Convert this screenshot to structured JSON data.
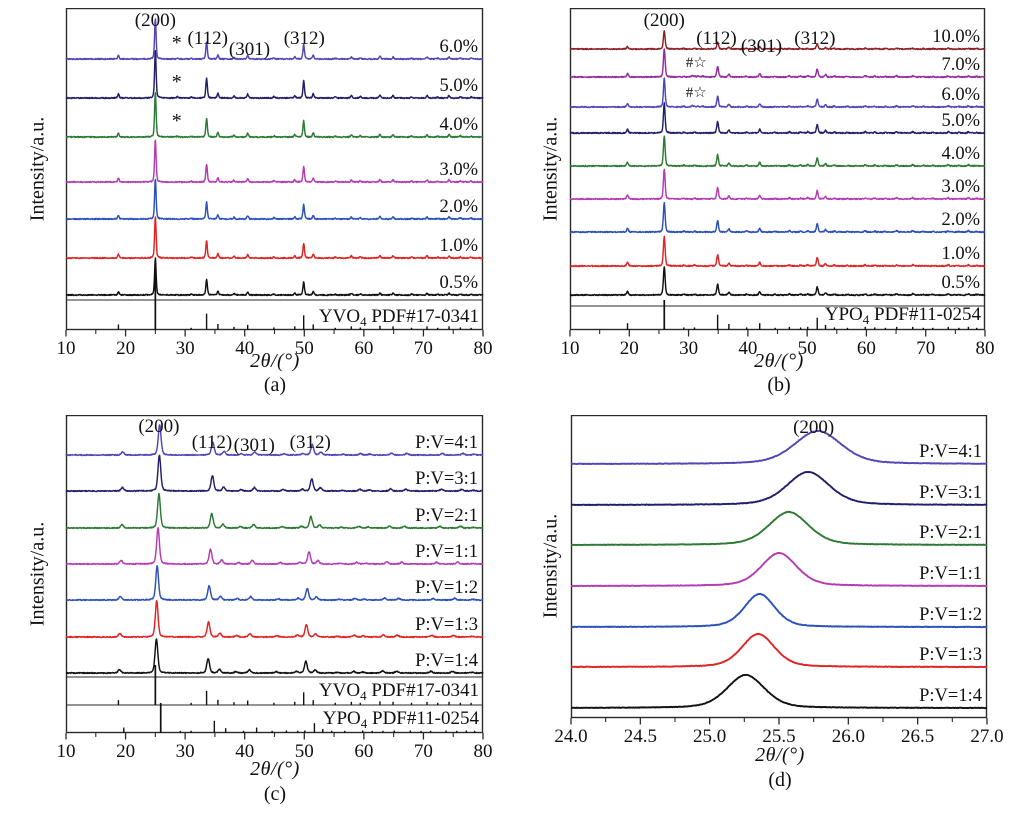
{
  "figure": {
    "background": "#ffffff",
    "ylabel": "Intensity/a.u.",
    "xlabel": "2θ/(°)"
  },
  "palette": {
    "violet": "#4f46b8",
    "navy": "#1f1f6b",
    "green": "#2c7a33",
    "magenta": "#b43bb4",
    "blue": "#2b50bb",
    "red": "#e02424",
    "black": "#111111",
    "darkred": "#8e2026",
    "purple": "#932d9e",
    "axis": "#2a2a2a",
    "text": "#111111"
  },
  "patterns": {
    "yvo4": [
      [
        18.8,
        9
      ],
      [
        25.0,
        100
      ],
      [
        31.0,
        2
      ],
      [
        33.6,
        42
      ],
      [
        35.5,
        10
      ],
      [
        38.2,
        4
      ],
      [
        40.5,
        8
      ],
      [
        44.9,
        3
      ],
      [
        48.4,
        5
      ],
      [
        49.9,
        36
      ],
      [
        51.5,
        9
      ],
      [
        55.2,
        2
      ],
      [
        57.9,
        5
      ],
      [
        59.4,
        3
      ],
      [
        62.7,
        6
      ],
      [
        64.9,
        5
      ],
      [
        68.0,
        2
      ],
      [
        70.6,
        5
      ],
      [
        72.4,
        2
      ],
      [
        74.3,
        5
      ],
      [
        76.2,
        3
      ],
      [
        78.0,
        2
      ]
    ],
    "ypo4": [
      [
        19.7,
        12
      ],
      [
        25.9,
        100
      ],
      [
        29.2,
        3
      ],
      [
        31.0,
        3
      ],
      [
        34.9,
        38
      ],
      [
        36.8,
        10
      ],
      [
        39.8,
        3
      ],
      [
        42.0,
        12
      ],
      [
        44.6,
        2
      ],
      [
        47.0,
        4
      ],
      [
        48.9,
        3
      ],
      [
        50.1,
        4
      ],
      [
        51.7,
        28
      ],
      [
        53.1,
        8
      ],
      [
        54.6,
        3
      ],
      [
        56.8,
        2
      ],
      [
        59.8,
        4
      ],
      [
        61.4,
        3
      ],
      [
        63.2,
        2
      ],
      [
        65.1,
        4
      ],
      [
        67.8,
        4
      ],
      [
        69.6,
        2
      ],
      [
        71.2,
        2
      ],
      [
        73.8,
        4
      ],
      [
        75.6,
        2
      ],
      [
        77.2,
        4
      ],
      [
        78.6,
        2
      ]
    ],
    "pairs": [
      [
        18.8,
        19.7,
        10
      ],
      [
        25.0,
        25.9,
        100
      ],
      [
        33.6,
        34.9,
        42
      ],
      [
        35.5,
        36.8,
        11
      ],
      [
        38.2,
        39.8,
        4
      ],
      [
        40.5,
        42.0,
        10
      ],
      [
        44.9,
        47.0,
        4
      ],
      [
        48.4,
        50.1,
        5
      ],
      [
        49.9,
        51.7,
        34
      ],
      [
        51.5,
        53.1,
        9
      ],
      [
        55.2,
        56.8,
        2
      ],
      [
        57.9,
        59.8,
        5
      ],
      [
        59.4,
        61.4,
        3
      ],
      [
        62.7,
        65.1,
        6
      ],
      [
        64.9,
        67.8,
        5
      ],
      [
        70.6,
        73.8,
        5
      ],
      [
        74.3,
        77.2,
        5
      ],
      [
        78.0,
        78.6,
        2
      ]
    ]
  },
  "chart_data": [
    {
      "id": "a",
      "type": "line",
      "panel_label": "(a)",
      "xlabel": "2θ/(°)",
      "ylabel": "Intensity/a.u.",
      "xlim": [
        10,
        80
      ],
      "xticks": [
        10,
        20,
        30,
        40,
        50,
        60,
        70,
        80
      ],
      "xtick_decimals": 0,
      "pattern": "yvo4",
      "peak_fwhm": 0.3,
      "annotations": [
        {
          "text": "(200)",
          "x": 25.0
        },
        {
          "text": "(112)",
          "x": 33.8
        },
        {
          "text": "(301)",
          "x": 40.8
        },
        {
          "text": "(312)",
          "x": 50.0
        }
      ],
      "series": [
        {
          "name": "6.0%",
          "color": "#4f46b8",
          "scale": 0.9,
          "marks": [
            {
              "text": "*",
              "x": 28.6
            }
          ],
          "extra_peaks": [
            [
              28.7,
              2.5
            ]
          ]
        },
        {
          "name": "5.0%",
          "color": "#1f1f6b",
          "scale": 1.07,
          "marks": [
            {
              "text": "*",
              "x": 28.6
            }
          ],
          "extra_peaks": [
            [
              28.7,
              2.5
            ]
          ]
        },
        {
          "name": "4.0%",
          "color": "#2c7a33",
          "scale": 1.0,
          "marks": [
            {
              "text": "*",
              "x": 28.6
            }
          ],
          "extra_peaks": [
            [
              28.7,
              2.5
            ]
          ]
        },
        {
          "name": "3.0%",
          "color": "#b43bb4",
          "scale": 0.95
        },
        {
          "name": "2.0%",
          "color": "#2b50bb",
          "scale": 0.9
        },
        {
          "name": "1.0%",
          "color": "#e02424",
          "scale": 0.92
        },
        {
          "name": "0.5%",
          "color": "#111111",
          "scale": 0.82
        }
      ],
      "references": [
        {
          "formula": "YVO",
          "sub": "4",
          "code": "PDF#17-0341",
          "pattern": "yvo4"
        }
      ]
    },
    {
      "id": "b",
      "type": "line",
      "panel_label": "(b)",
      "xlabel": "2θ/(°)",
      "ylabel": "Intensity/a.u.",
      "xlim": [
        10,
        80
      ],
      "xticks": [
        10,
        20,
        30,
        40,
        50,
        60,
        70,
        80
      ],
      "xtick_decimals": 0,
      "pattern": "ypo4",
      "peak_fwhm": 0.34,
      "annotations": [
        {
          "text": "(200)",
          "x": 25.9
        },
        {
          "text": "(112)",
          "x": 34.7
        },
        {
          "text": "(301)",
          "x": 42.3
        },
        {
          "text": "(312)",
          "x": 51.3
        }
      ],
      "series": [
        {
          "name": "10.0%",
          "color": "#8e2026",
          "scale": 0.62
        },
        {
          "name": "7.0%",
          "color": "#932d9e",
          "scale": 0.95,
          "marks": [
            {
              "text": "#☆",
              "x": 31.3
            }
          ],
          "extra_peaks": [
            [
              30.6,
              5
            ],
            [
              31.6,
              4
            ],
            [
              32.4,
              3
            ]
          ]
        },
        {
          "name": "6.0%",
          "color": "#4f46b8",
          "scale": 0.95,
          "marks": [
            {
              "text": "#☆",
              "x": 31.3
            }
          ],
          "extra_peaks": [
            [
              30.6,
              5
            ],
            [
              31.6,
              4
            ],
            [
              32.4,
              3
            ]
          ]
        },
        {
          "name": "5.0%",
          "color": "#1f1f6b",
          "scale": 1.0
        },
        {
          "name": "4.0%",
          "color": "#2c7a33",
          "scale": 1.0
        },
        {
          "name": "3.0%",
          "color": "#b43bb4",
          "scale": 1.0
        },
        {
          "name": "2.0%",
          "color": "#2b50bb",
          "scale": 1.0
        },
        {
          "name": "1.0%",
          "color": "#e02424",
          "scale": 1.0
        },
        {
          "name": "0.5%",
          "color": "#111111",
          "scale": 0.95
        }
      ],
      "references": [
        {
          "formula": "YPO",
          "sub": "4",
          "code": "PDF#11-0254",
          "pattern": "ypo4"
        }
      ]
    },
    {
      "id": "c",
      "type": "line",
      "panel_label": "(c)",
      "xlabel": "2θ/(°)",
      "ylabel": "Intensity/a.u.",
      "xlim": [
        10,
        80
      ],
      "xticks": [
        10,
        20,
        30,
        40,
        50,
        60,
        70,
        80
      ],
      "xtick_decimals": 0,
      "pattern": "pairs",
      "peak_fwhm": 0.55,
      "annotations": [
        {
          "text": "(200)",
          "x": 25.6
        },
        {
          "text": "(112)",
          "x": 34.5
        },
        {
          "text": "(301)",
          "x": 41.6
        },
        {
          "text": "(312)",
          "x": 51.0
        }
      ],
      "series": [
        {
          "name": "P:V=4:1",
          "color": "#4f46b8",
          "blend": 0.8,
          "scale": 0.85
        },
        {
          "name": "P:V=3:1",
          "color": "#1f1f6b",
          "blend": 0.75,
          "scale": 1.0
        },
        {
          "name": "P:V=2:1",
          "color": "#2c7a33",
          "blend": 0.667,
          "scale": 0.95
        },
        {
          "name": "P:V=1:1",
          "color": "#b43bb4",
          "blend": 0.5,
          "scale": 1.0
        },
        {
          "name": "P:V=1:2",
          "color": "#2b50bb",
          "blend": 0.333,
          "scale": 0.95
        },
        {
          "name": "P:V=1:3",
          "color": "#e02424",
          "blend": 0.25,
          "scale": 1.0
        },
        {
          "name": "P:V=1:4",
          "color": "#111111",
          "blend": 0.2,
          "scale": 0.95
        }
      ],
      "references": [
        {
          "formula": "YVO",
          "sub": "4",
          "code": "PDF#17-0341",
          "pattern": "yvo4"
        },
        {
          "formula": "YPO",
          "sub": "4",
          "code": "PDF#11-0254",
          "pattern": "ypo4"
        }
      ]
    },
    {
      "id": "d",
      "type": "line",
      "panel_label": "(d)",
      "xlabel": "2θ/(°)",
      "ylabel": "Intensity/a.u.",
      "xlim": [
        24.0,
        27.0
      ],
      "xticks": [
        24.0,
        24.5,
        25.0,
        25.5,
        26.0,
        26.5,
        27.0
      ],
      "xtick_decimals": 1,
      "annotations": [
        {
          "text": "(200)",
          "x": 25.75
        }
      ],
      "series": [
        {
          "name": "P:V=4:1",
          "color": "#4f46b8",
          "center": 25.78,
          "fwhm": 0.4
        },
        {
          "name": "P:V=3:1",
          "color": "#1f1f6b",
          "center": 25.71,
          "fwhm": 0.36
        },
        {
          "name": "P:V=2:1",
          "color": "#2c7a33",
          "center": 25.57,
          "fwhm": 0.34
        },
        {
          "name": "P:V=1:1",
          "color": "#b43bb4",
          "center": 25.5,
          "fwhm": 0.3
        },
        {
          "name": "P:V=1:2",
          "color": "#2b50bb",
          "center": 25.36,
          "fwhm": 0.26
        },
        {
          "name": "P:V=1:3",
          "color": "#e02424",
          "center": 25.35,
          "fwhm": 0.28
        },
        {
          "name": "P:V=1:4",
          "color": "#111111",
          "center": 25.26,
          "fwhm": 0.32
        }
      ]
    }
  ]
}
